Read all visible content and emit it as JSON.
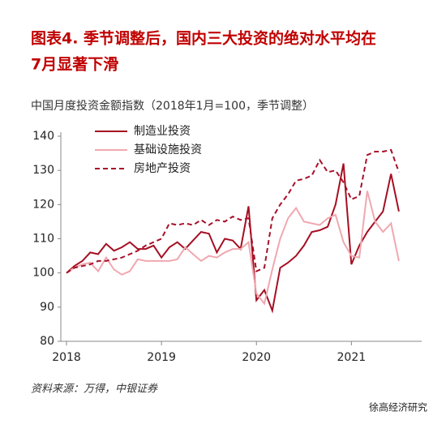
{
  "chart_data": {
    "type": "line",
    "title": [
      "图表4.  季节调整后，国内三大投资的绝对水平均在",
      "7月显著下滑"
    ],
    "subtitle": "中国月度投资金额指数（2018年1月=100，季节调整）",
    "source": "资料来源：万得，中银证券",
    "watermark": "徐高经济研究",
    "x": [
      2018,
      2018.083,
      2018.167,
      2018.25,
      2018.333,
      2018.417,
      2018.5,
      2018.583,
      2018.667,
      2018.75,
      2018.833,
      2018.917,
      2019,
      2019.083,
      2019.167,
      2019.25,
      2019.333,
      2019.417,
      2019.5,
      2019.583,
      2019.667,
      2019.75,
      2019.833,
      2019.917,
      2020,
      2020.083,
      2020.167,
      2020.25,
      2020.333,
      2020.417,
      2020.5,
      2020.583,
      2020.667,
      2020.75,
      2020.833,
      2020.917,
      2021,
      2021.083,
      2021.167,
      2021.25,
      2021.333,
      2021.417,
      2021.5
    ],
    "xlim": [
      2017.94,
      2021.74
    ],
    "xticks": [
      2018,
      2019,
      2020,
      2021
    ],
    "ylim": [
      80,
      140
    ],
    "yticks": [
      80,
      90,
      100,
      110,
      120,
      130,
      140
    ],
    "grid": false,
    "legend": "upper left",
    "series": [
      {
        "name": "制造业投资",
        "color": "#a50f22",
        "dash": false,
        "values": [
          100,
          102,
          103.5,
          106,
          105.5,
          108.5,
          106.5,
          107.5,
          109,
          107,
          107,
          108,
          104.5,
          107.5,
          109,
          107,
          109.5,
          112,
          111.5,
          106,
          110,
          109.5,
          107,
          119.5,
          92,
          95,
          89,
          101.5,
          103,
          105,
          108,
          112,
          112.5,
          113.5,
          120,
          132,
          102.5,
          108,
          112,
          115,
          118,
          129,
          118
        ]
      },
      {
        "name": "基础设施投资",
        "color": "#f0a8b0",
        "dash": false,
        "values": [
          100,
          101.5,
          102.5,
          103,
          100.5,
          104.5,
          101,
          99.5,
          100.5,
          104,
          103.5,
          103.5,
          103.5,
          103.5,
          104,
          107.5,
          105.5,
          103.5,
          105,
          104.5,
          106,
          107,
          107,
          109,
          94,
          91,
          101,
          110,
          116,
          119,
          115,
          114.5,
          114,
          116,
          117,
          109,
          105,
          104.5,
          124,
          115,
          112,
          114.5,
          103.5
        ]
      },
      {
        "name": "房地产投资",
        "color": "#a8102a",
        "dash": true,
        "values": [
          100,
          101.5,
          102,
          102.5,
          103.5,
          103.5,
          104,
          104.5,
          105.5,
          106.5,
          108,
          109,
          110,
          114.5,
          114,
          114.5,
          114,
          115.5,
          114,
          115.5,
          115,
          116.5,
          115.5,
          116,
          100.5,
          101.5,
          116,
          120,
          123,
          127,
          127.5,
          128.5,
          133,
          129.5,
          130,
          126.5,
          121.5,
          122.5,
          134.5,
          135.5,
          135.5,
          136,
          129.5
        ]
      }
    ]
  }
}
